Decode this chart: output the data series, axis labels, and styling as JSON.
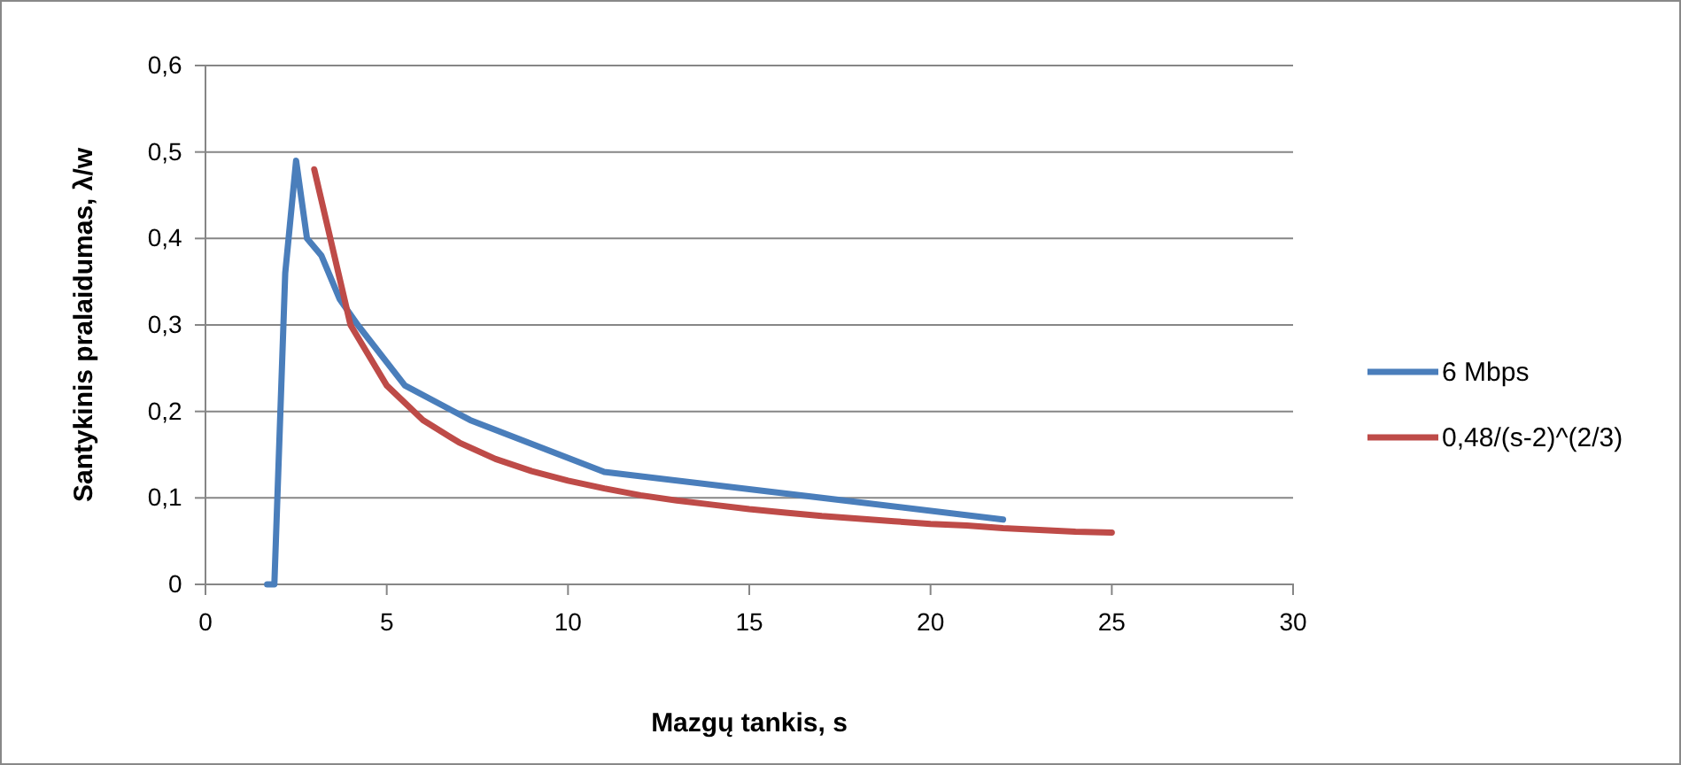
{
  "chart_data": {
    "type": "line",
    "xlabel": "Mazgų tankis, s",
    "ylabel": "Santykinis pralaidumas, λ/w",
    "xlim": [
      0,
      30
    ],
    "xticks": [
      0,
      5,
      10,
      15,
      20,
      25,
      30
    ],
    "ylim": [
      0,
      0.6
    ],
    "yticks": [
      {
        "value": 0,
        "label": "0"
      },
      {
        "value": 0.1,
        "label": "0,1"
      },
      {
        "value": 0.2,
        "label": "0,2"
      },
      {
        "value": 0.3,
        "label": "0,3"
      },
      {
        "value": 0.4,
        "label": "0,4"
      },
      {
        "value": 0.5,
        "label": "0,5"
      },
      {
        "value": 0.6,
        "label": "0,6"
      }
    ],
    "grid": "y",
    "legend": "right",
    "marker": "none",
    "line_style": "solid",
    "series": [
      {
        "name": "6 Mbps",
        "color": "#4a7ebb",
        "x": [
          1.7,
          1.9,
          2.2,
          2.5,
          2.8,
          3.2,
          3.7,
          4.2,
          5.5,
          7.3,
          11,
          17,
          22
        ],
        "values": [
          0,
          0,
          0.36,
          0.49,
          0.4,
          0.38,
          0.33,
          0.3,
          0.23,
          0.19,
          0.13,
          0.1,
          0.075
        ]
      },
      {
        "name": "0,48/(s-2)^(2/3)",
        "color": "#be4b48",
        "x": [
          3,
          4,
          5,
          6,
          7,
          8,
          9,
          10,
          11,
          12,
          13,
          14,
          15,
          16,
          17,
          18,
          19,
          20,
          21,
          22,
          23,
          24,
          25
        ],
        "values": [
          0.48,
          0.3,
          0.23,
          0.19,
          0.164,
          0.145,
          0.131,
          0.12,
          0.111,
          0.103,
          0.097,
          0.092,
          0.087,
          0.083,
          0.079,
          0.076,
          0.073,
          0.07,
          0.068,
          0.065,
          0.063,
          0.061,
          0.06
        ]
      }
    ]
  }
}
